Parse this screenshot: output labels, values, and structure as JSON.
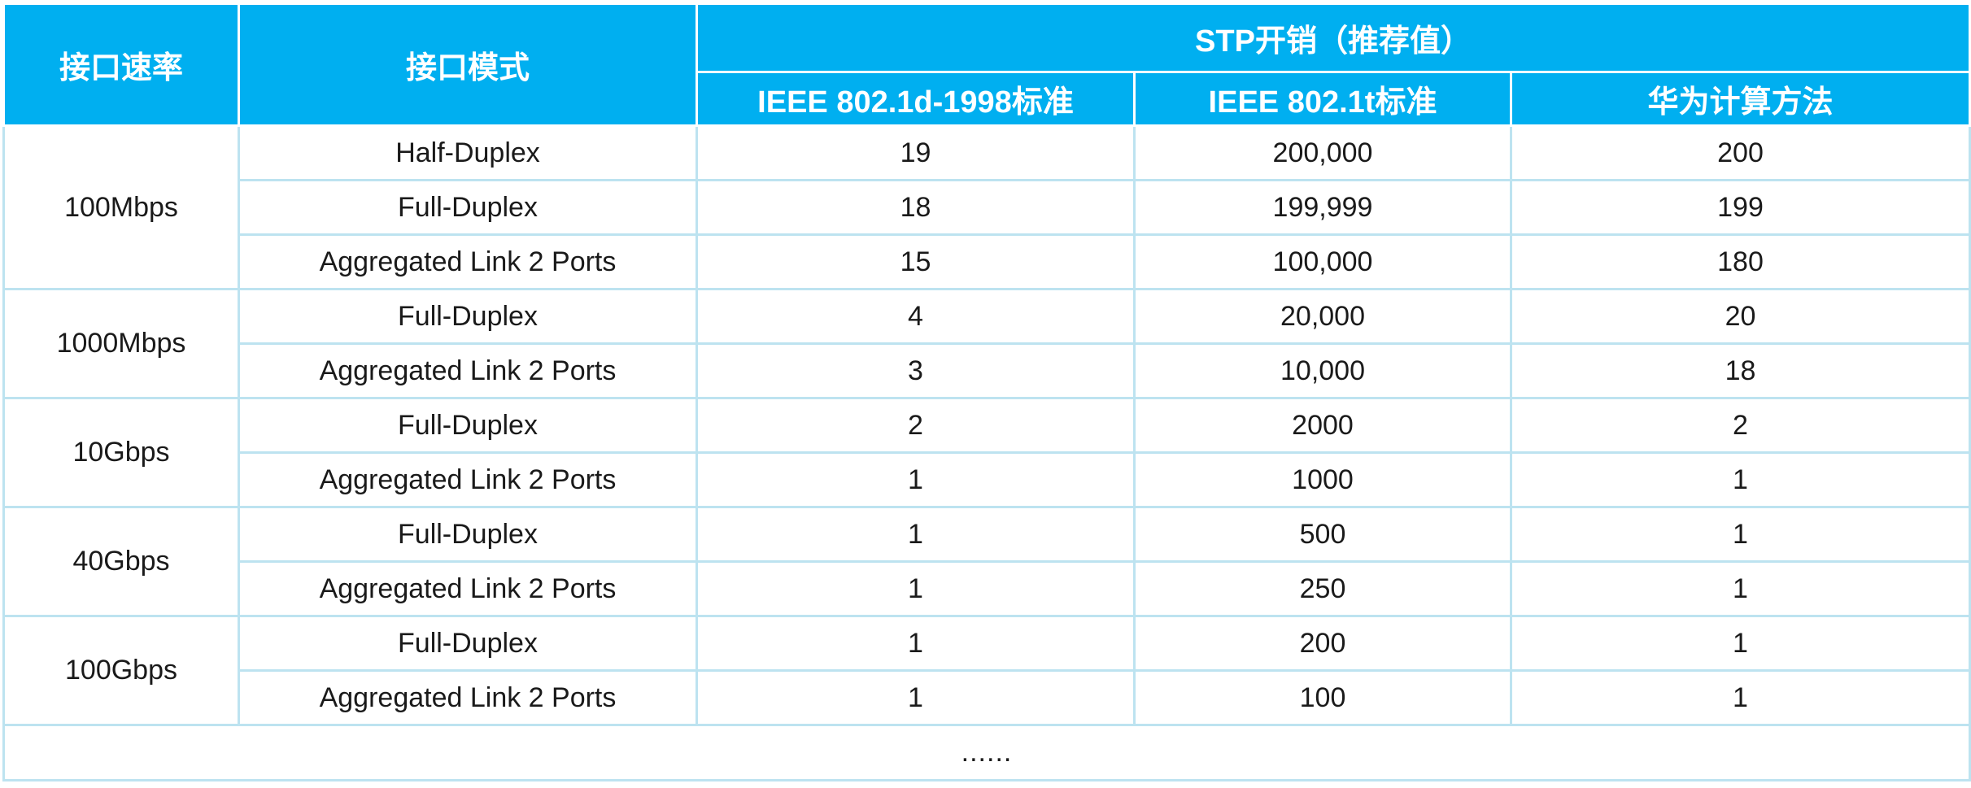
{
  "header": {
    "speed": "接口速率",
    "mode": "接口模式",
    "stp_cost": "STP开销（推荐值）",
    "ieee_1998": "IEEE 802.1d-1998标准",
    "ieee_t": "IEEE 802.1t标准",
    "huawei": "华为计算方法"
  },
  "groups": [
    {
      "speed": "100Mbps",
      "rows": [
        {
          "mode": "Half-Duplex",
          "ieee_1998": "19",
          "ieee_t": "200,000",
          "huawei": "200"
        },
        {
          "mode": "Full-Duplex",
          "ieee_1998": "18",
          "ieee_t": "199,999",
          "huawei": "199"
        },
        {
          "mode": "Aggregated Link 2 Ports",
          "ieee_1998": "15",
          "ieee_t": "100,000",
          "huawei": "180"
        }
      ]
    },
    {
      "speed": "1000Mbps",
      "rows": [
        {
          "mode": "Full-Duplex",
          "ieee_1998": "4",
          "ieee_t": "20,000",
          "huawei": "20"
        },
        {
          "mode": "Aggregated Link 2 Ports",
          "ieee_1998": "3",
          "ieee_t": "10,000",
          "huawei": "18"
        }
      ]
    },
    {
      "speed": "10Gbps",
      "rows": [
        {
          "mode": "Full-Duplex",
          "ieee_1998": "2",
          "ieee_t": "2000",
          "huawei": "2"
        },
        {
          "mode": "Aggregated Link 2 Ports",
          "ieee_1998": "1",
          "ieee_t": "1000",
          "huawei": "1"
        }
      ]
    },
    {
      "speed": "40Gbps",
      "rows": [
        {
          "mode": "Full-Duplex",
          "ieee_1998": "1",
          "ieee_t": "500",
          "huawei": "1"
        },
        {
          "mode": "Aggregated Link 2 Ports",
          "ieee_1998": "1",
          "ieee_t": "250",
          "huawei": "1"
        }
      ]
    },
    {
      "speed": "100Gbps",
      "rows": [
        {
          "mode": "Full-Duplex",
          "ieee_1998": "1",
          "ieee_t": "200",
          "huawei": "1"
        },
        {
          "mode": "Aggregated Link 2 Ports",
          "ieee_1998": "1",
          "ieee_t": "100",
          "huawei": "1"
        }
      ]
    }
  ],
  "footer_ellipsis": "......",
  "colors": {
    "header_bg": "#00aff0",
    "header_text": "#ffffff",
    "border": "#bde3f0",
    "cell_text": "#1a1a1a"
  }
}
